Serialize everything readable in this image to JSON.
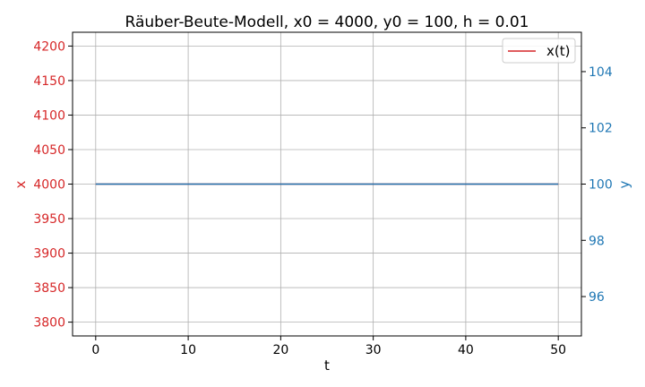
{
  "chart_data": {
    "type": "line",
    "title": "Räuber-Beute-Modell, x0 = 4000, y0 = 100, h = 0.01",
    "xlabel": "t",
    "ylabel_left": "x",
    "ylabel_right": "y",
    "xlim": [
      -2.5,
      52.5
    ],
    "ylim_left": [
      3780,
      4220
    ],
    "ylim_right": [
      94.6,
      105.4
    ],
    "x_ticks": [
      "0",
      "10",
      "20",
      "30",
      "40",
      "50"
    ],
    "x_tick_values": [
      0,
      10,
      20,
      30,
      40,
      50
    ],
    "y_left_ticks": [
      "3800",
      "3850",
      "3900",
      "3950",
      "4000",
      "4050",
      "4100",
      "4150",
      "4200"
    ],
    "y_left_tick_values": [
      3800,
      3850,
      3900,
      3950,
      4000,
      4050,
      4100,
      4150,
      4200
    ],
    "y_right_ticks": [
      "96",
      "98",
      "100",
      "102",
      "104"
    ],
    "y_right_tick_values": [
      96,
      98,
      100,
      102,
      104
    ],
    "grid": true,
    "legend_position": "top-right",
    "series": [
      {
        "name": "x(t)",
        "axis": "left",
        "color": "#d62728",
        "x": [
          0,
          50
        ],
        "y": [
          4000,
          4000
        ],
        "in_legend": true
      },
      {
        "name": "",
        "axis": "right",
        "color": "#1f77b4",
        "x": [
          0,
          50
        ],
        "y": [
          100,
          100
        ],
        "in_legend": false
      }
    ],
    "colors": {
      "left_axis": "#d62728",
      "right_axis": "#1f77b4",
      "grid": "#b0b0b0"
    }
  }
}
